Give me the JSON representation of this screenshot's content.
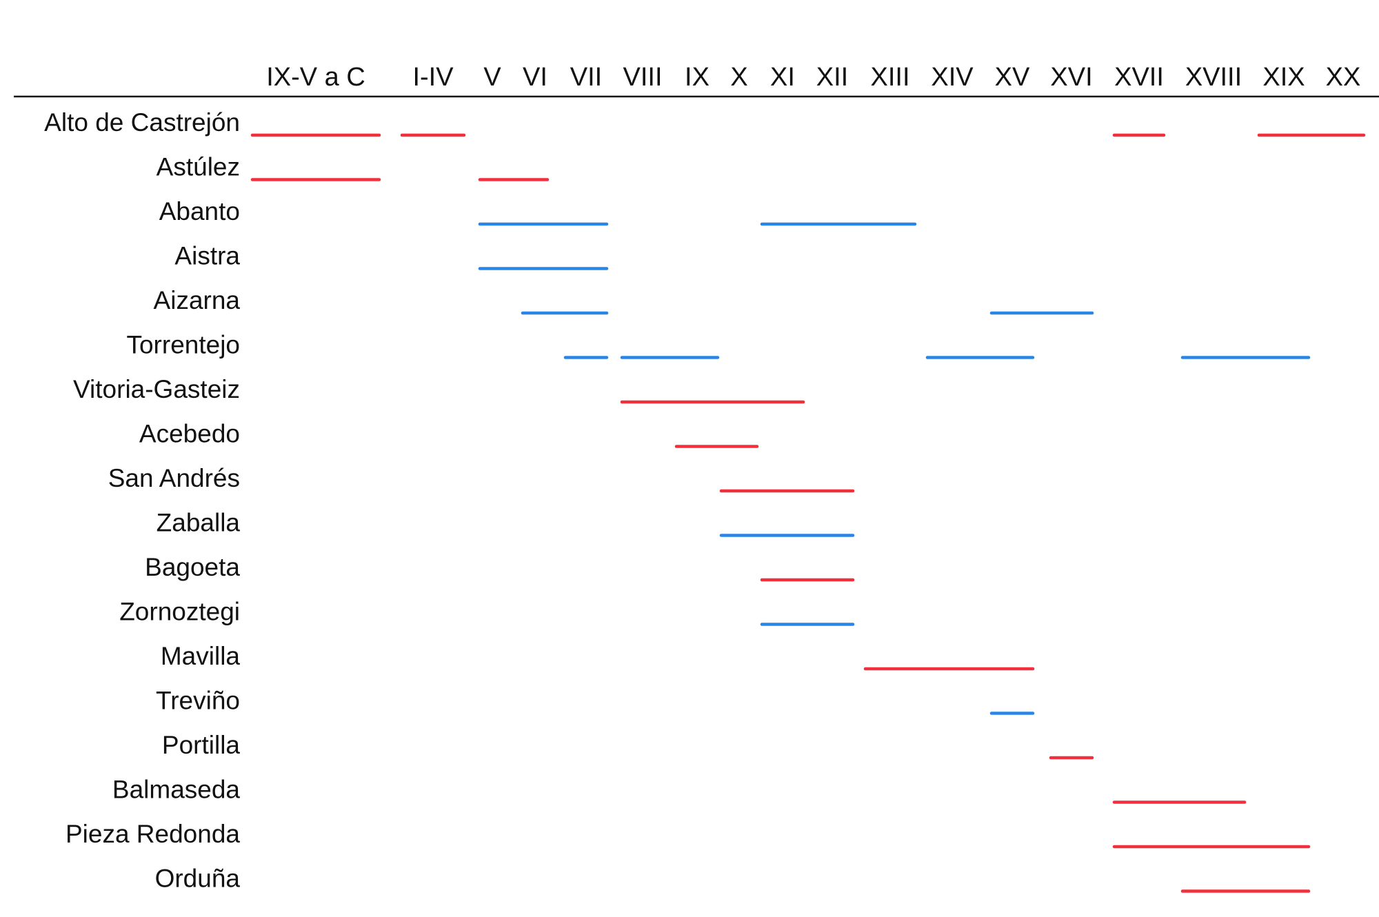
{
  "chart_data": {
    "type": "timeline",
    "periods": [
      "IX-V a C",
      "I-IV",
      "V",
      "VI",
      "VII",
      "VIII",
      "IX",
      "X",
      "XI",
      "XII",
      "XIII",
      "XIV",
      "XV",
      "XVI",
      "XVII",
      "XVIII",
      "XIX",
      "XX"
    ],
    "colors": {
      "red": "#f0303c",
      "blue": "#2a86e6",
      "axis": "#111111"
    },
    "sites": [
      {
        "name": "Alto de Castrejón",
        "ranges": [
          {
            "color": "red",
            "start": "IX-V a C",
            "end": "IX-V a C"
          },
          {
            "color": "red",
            "start": "I-IV",
            "end": "I-IV"
          },
          {
            "color": "red",
            "start": "XVII",
            "end": "XVII"
          },
          {
            "color": "red",
            "start": "XIX",
            "end": "XX"
          }
        ]
      },
      {
        "name": "Astúlez",
        "ranges": [
          {
            "color": "red",
            "start": "IX-V a C",
            "end": "IX-V a C"
          },
          {
            "color": "red",
            "start": "V",
            "end": "VI"
          }
        ]
      },
      {
        "name": "Abanto",
        "ranges": [
          {
            "color": "blue",
            "start": "V",
            "end": "VII"
          },
          {
            "color": "blue",
            "start": "XI",
            "end": "XIII"
          }
        ]
      },
      {
        "name": "Aistra",
        "ranges": [
          {
            "color": "blue",
            "start": "V",
            "end": "VII"
          }
        ]
      },
      {
        "name": "Aizarna",
        "ranges": [
          {
            "color": "blue",
            "start": "VI",
            "end": "VII"
          },
          {
            "color": "blue",
            "start": "XV",
            "end": "XVI"
          }
        ]
      },
      {
        "name": "Torrentejo",
        "ranges": [
          {
            "color": "blue",
            "start": "VII",
            "end": "VII"
          },
          {
            "color": "blue",
            "start": "VIII",
            "end": "IX"
          },
          {
            "color": "blue",
            "start": "XIV",
            "end": "XV"
          },
          {
            "color": "blue",
            "start": "XVIII",
            "end": "XIX"
          }
        ]
      },
      {
        "name": "Vitoria-Gasteiz",
        "ranges": [
          {
            "color": "red",
            "start": "VIII",
            "end": "XI"
          }
        ]
      },
      {
        "name": "Acebedo",
        "ranges": [
          {
            "color": "red",
            "start": "IX",
            "end": "X"
          }
        ]
      },
      {
        "name": "San Andrés",
        "ranges": [
          {
            "color": "red",
            "start": "X",
            "end": "XII"
          }
        ]
      },
      {
        "name": "Zaballa",
        "ranges": [
          {
            "color": "blue",
            "start": "X",
            "end": "XII"
          }
        ]
      },
      {
        "name": "Bagoeta",
        "ranges": [
          {
            "color": "red",
            "start": "XI",
            "end": "XII"
          }
        ]
      },
      {
        "name": "Zornoztegi",
        "ranges": [
          {
            "color": "blue",
            "start": "XI",
            "end": "XII"
          }
        ]
      },
      {
        "name": "Mavilla",
        "ranges": [
          {
            "color": "red",
            "start": "XIII",
            "end": "XV"
          }
        ]
      },
      {
        "name": "Treviño",
        "ranges": [
          {
            "color": "blue",
            "start": "XV",
            "end": "XV"
          }
        ]
      },
      {
        "name": "Portilla",
        "ranges": [
          {
            "color": "red",
            "start": "XVI",
            "end": "XVI"
          }
        ]
      },
      {
        "name": "Balmaseda",
        "ranges": [
          {
            "color": "red",
            "start": "XVII",
            "end": "XVIII"
          }
        ]
      },
      {
        "name": "Pieza Redonda",
        "ranges": [
          {
            "color": "red",
            "start": "XVII",
            "end": "XIX"
          }
        ]
      },
      {
        "name": "Orduña",
        "ranges": [
          {
            "color": "red",
            "start": "XVIII",
            "end": "XIX"
          }
        ]
      }
    ]
  }
}
